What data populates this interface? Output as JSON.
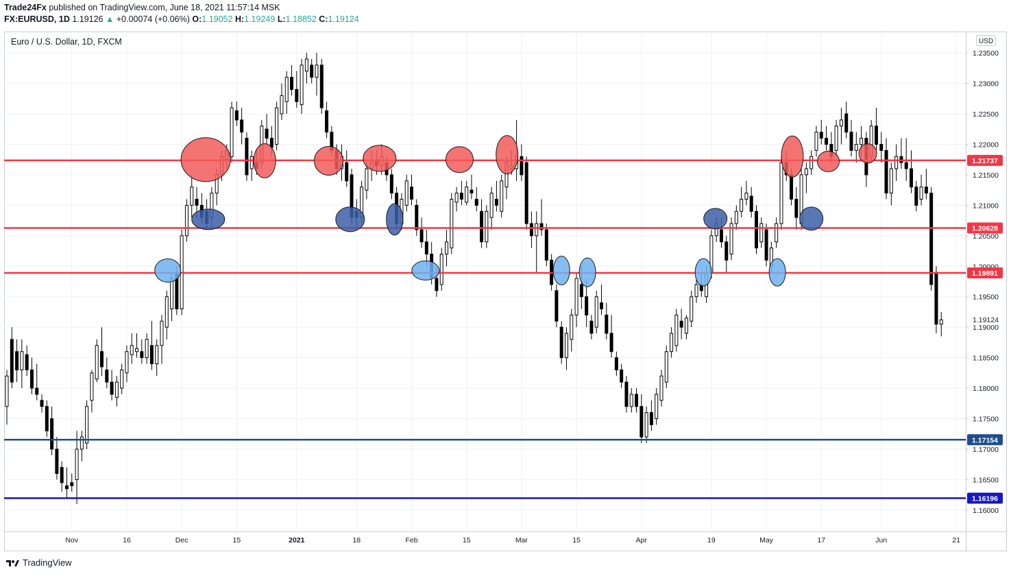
{
  "header": {
    "publisher": "Trade24Fx",
    "published_text": "published on TradingView.com, June 18, 2021 11:57:14 MSK",
    "symbol": "FX:EURUSD, 1D",
    "last": "1.19126",
    "change_arrow": "▲",
    "change": "+0.00074 (+0.06%)",
    "o_label": "O:",
    "o_value": "1.19052",
    "h_label": "H:",
    "h_value": "1.19249",
    "l_label": "L:",
    "l_value": "1.18852",
    "c_label": "C:",
    "c_value": "1.19124"
  },
  "legend_title": "Euro / U.S. Dollar, 1D, FXCM",
  "currency_badge": "USD",
  "footer": {
    "brand": "TradingView",
    "logo_icon": "tradingview-logo-icon"
  },
  "colors": {
    "resistance": "#f23645",
    "support": "#1e4d8c",
    "deep_support": "#1515c8",
    "bull_candle": "#ffffff",
    "bear_candle": "#000000",
    "red_marker": "#f25a5a",
    "dark_blue_marker": "#3d5fa8",
    "light_blue_marker": "#6fb2ee"
  },
  "chart_data": {
    "type": "candlestick",
    "title": "Euro / U.S. Dollar, 1D, FXCM",
    "ylim": [
      1.1565,
      1.2385
    ],
    "y_ticks": [
      "1.23500",
      "1.23000",
      "1.22500",
      "1.22000",
      "1.21500",
      "1.21000",
      "1.20500",
      "1.20000",
      "1.19500",
      "1.19000",
      "1.18500",
      "1.18000",
      "1.17500",
      "1.17000",
      "1.16500",
      "1.16000"
    ],
    "x_ticks": [
      {
        "label": "Nov",
        "index": 13
      },
      {
        "label": "16",
        "index": 24
      },
      {
        "label": "Dec",
        "index": 35
      },
      {
        "label": "15",
        "index": 46
      },
      {
        "label": "2021",
        "index": 58
      },
      {
        "label": "18",
        "index": 70
      },
      {
        "label": "Feb",
        "index": 81
      },
      {
        "label": "15",
        "index": 92
      },
      {
        "label": "Mar",
        "index": 103
      },
      {
        "label": "15",
        "index": 114
      },
      {
        "label": "Apr",
        "index": 127
      },
      {
        "label": "19",
        "index": 141
      },
      {
        "label": "May",
        "index": 152
      },
      {
        "label": "17",
        "index": 163
      },
      {
        "label": "Jun",
        "index": 175
      },
      {
        "label": "21",
        "index": 190
      }
    ],
    "horizontal_lines": [
      {
        "value": 1.21737,
        "label": "1.21737",
        "kind": "resistance"
      },
      {
        "value": 1.20628,
        "label": "1.20628",
        "kind": "resistance"
      },
      {
        "value": 1.19891,
        "label": "1.19891",
        "kind": "resistance"
      },
      {
        "value": 1.17154,
        "label": "1.17154",
        "kind": "support"
      },
      {
        "value": 1.16196,
        "label": "1.16196",
        "kind": "deep_support"
      }
    ],
    "last_price": {
      "value": 1.19124,
      "label": "1.19124"
    },
    "markers": [
      {
        "index": 32.2,
        "price": 1.1993,
        "kind": "light_blue",
        "rx": 19,
        "ry": 17
      },
      {
        "index": 39.8,
        "price": 1.2175,
        "kind": "red",
        "rx": 36,
        "ry": 32
      },
      {
        "index": 40.3,
        "price": 1.2077,
        "kind": "dark_blue",
        "rx": 24,
        "ry": 15
      },
      {
        "index": 51.6,
        "price": 1.2173,
        "kind": "red",
        "rx": 16,
        "ry": 25
      },
      {
        "index": 64.4,
        "price": 1.2173,
        "kind": "red",
        "rx": 21,
        "ry": 21
      },
      {
        "index": 68.7,
        "price": 1.2077,
        "kind": "dark_blue",
        "rx": 21,
        "ry": 18
      },
      {
        "index": 74.6,
        "price": 1.2177,
        "kind": "red",
        "rx": 24,
        "ry": 19
      },
      {
        "index": 77.6,
        "price": 1.2077,
        "kind": "dark_blue",
        "rx": 12,
        "ry": 23
      },
      {
        "index": 83.8,
        "price": 1.1993,
        "kind": "light_blue",
        "rx": 20,
        "ry": 14
      },
      {
        "index": 90.6,
        "price": 1.2175,
        "kind": "red",
        "rx": 20,
        "ry": 19
      },
      {
        "index": 100.1,
        "price": 1.2183,
        "kind": "red",
        "rx": 16,
        "ry": 28
      },
      {
        "index": 111.0,
        "price": 1.1993,
        "kind": "light_blue",
        "rx": 12,
        "ry": 21
      },
      {
        "index": 116.2,
        "price": 1.199,
        "kind": "light_blue",
        "rx": 12,
        "ry": 21
      },
      {
        "index": 139.4,
        "price": 1.199,
        "kind": "light_blue",
        "rx": 12,
        "ry": 20
      },
      {
        "index": 141.8,
        "price": 1.2078,
        "kind": "dark_blue",
        "rx": 17,
        "ry": 15
      },
      {
        "index": 154.2,
        "price": 1.199,
        "kind": "light_blue",
        "rx": 12,
        "ry": 20
      },
      {
        "index": 157.2,
        "price": 1.218,
        "kind": "red",
        "rx": 16,
        "ry": 30
      },
      {
        "index": 161.0,
        "price": 1.2078,
        "kind": "dark_blue",
        "rx": 17,
        "ry": 17
      },
      {
        "index": 164.4,
        "price": 1.2172,
        "kind": "red",
        "rx": 16,
        "ry": 15
      },
      {
        "index": 172.3,
        "price": 1.2185,
        "kind": "red",
        "rx": 13,
        "ry": 14
      }
    ],
    "candles": [
      [
        1.174,
        1.183,
        1.177,
        1.182
      ],
      [
        1.18,
        1.19,
        1.188,
        1.181
      ],
      [
        1.181,
        1.188,
        1.186,
        1.183
      ],
      [
        1.18,
        1.188,
        1.183,
        1.186
      ],
      [
        1.182,
        1.187,
        1.1855,
        1.183
      ],
      [
        1.179,
        1.185,
        1.183,
        1.18
      ],
      [
        1.178,
        1.184,
        1.18,
        1.179
      ],
      [
        1.176,
        1.179,
        1.178,
        1.177
      ],
      [
        1.172,
        1.178,
        1.177,
        1.173
      ],
      [
        1.169,
        1.177,
        1.175,
        1.17
      ],
      [
        1.165,
        1.172,
        1.17,
        1.166
      ],
      [
        1.163,
        1.168,
        1.167,
        1.1645
      ],
      [
        1.162,
        1.167,
        1.164,
        1.1635
      ],
      [
        1.163,
        1.166,
        1.1645,
        1.164
      ],
      [
        1.161,
        1.173,
        1.165,
        1.17
      ],
      [
        1.168,
        1.173,
        1.17,
        1.172
      ],
      [
        1.17,
        1.178,
        1.171,
        1.177
      ],
      [
        1.176,
        1.183,
        1.178,
        1.1825
      ],
      [
        1.181,
        1.188,
        1.1815,
        1.187
      ],
      [
        1.182,
        1.19,
        1.186,
        1.1835
      ],
      [
        1.18,
        1.185,
        1.183,
        1.181
      ],
      [
        1.178,
        1.183,
        1.181,
        1.179
      ],
      [
        1.177,
        1.182,
        1.1785,
        1.181
      ],
      [
        1.179,
        1.184,
        1.18,
        1.183
      ],
      [
        1.181,
        1.187,
        1.1825,
        1.186
      ],
      [
        1.184,
        1.189,
        1.1855,
        1.187
      ],
      [
        1.185,
        1.189,
        1.186,
        1.1865
      ],
      [
        1.184,
        1.188,
        1.186,
        1.185
      ],
      [
        1.184,
        1.189,
        1.185,
        1.188
      ],
      [
        1.183,
        1.191,
        1.187,
        1.184
      ],
      [
        1.182,
        1.188,
        1.184,
        1.187
      ],
      [
        1.184,
        1.192,
        1.187,
        1.191
      ],
      [
        1.188,
        1.196,
        1.19,
        1.195
      ],
      [
        1.191,
        1.199,
        1.193,
        1.198
      ],
      [
        1.192,
        1.2,
        1.199,
        1.193
      ],
      [
        1.192,
        1.206,
        1.193,
        1.205
      ],
      [
        1.204,
        1.211,
        1.205,
        1.21
      ],
      [
        1.208,
        1.215,
        1.21,
        1.213
      ],
      [
        1.208,
        1.213,
        1.211,
        1.21
      ],
      [
        1.207,
        1.212,
        1.21,
        1.208
      ],
      [
        1.206,
        1.211,
        1.209,
        1.207
      ],
      [
        1.206,
        1.213,
        1.208,
        1.212
      ],
      [
        1.21,
        1.216,
        1.212,
        1.215
      ],
      [
        1.214,
        1.219,
        1.215,
        1.218
      ],
      [
        1.216,
        1.22,
        1.2175,
        1.219
      ],
      [
        1.217,
        1.227,
        1.218,
        1.226
      ],
      [
        1.223,
        1.227,
        1.2255,
        1.224
      ],
      [
        1.22,
        1.226,
        1.224,
        1.222
      ],
      [
        1.214,
        1.222,
        1.221,
        1.215
      ],
      [
        1.214,
        1.219,
        1.216,
        1.218
      ],
      [
        1.215,
        1.219,
        1.217,
        1.216
      ],
      [
        1.216,
        1.224,
        1.217,
        1.223
      ],
      [
        1.22,
        1.225,
        1.2225,
        1.221
      ],
      [
        1.218,
        1.223,
        1.221,
        1.2195
      ],
      [
        1.219,
        1.227,
        1.22,
        1.226
      ],
      [
        1.224,
        1.23,
        1.225,
        1.228
      ],
      [
        1.225,
        1.232,
        1.227,
        1.231
      ],
      [
        1.228,
        1.233,
        1.231,
        1.229
      ],
      [
        1.226,
        1.232,
        1.229,
        1.227
      ],
      [
        1.225,
        1.234,
        1.2265,
        1.233
      ],
      [
        1.23,
        1.235,
        1.232,
        1.234
      ],
      [
        1.23,
        1.234,
        1.233,
        1.231
      ],
      [
        1.228,
        1.235,
        1.231,
        1.233
      ],
      [
        1.225,
        1.234,
        1.233,
        1.226
      ],
      [
        1.221,
        1.227,
        1.2255,
        1.222
      ],
      [
        1.218,
        1.223,
        1.222,
        1.219
      ],
      [
        1.215,
        1.22,
        1.219,
        1.216
      ],
      [
        1.214,
        1.22,
        1.216,
        1.218
      ],
      [
        1.213,
        1.219,
        1.217,
        1.214
      ],
      [
        1.207,
        1.216,
        1.215,
        1.208
      ],
      [
        1.206,
        1.211,
        1.209,
        1.208
      ],
      [
        1.207,
        1.214,
        1.208,
        1.213
      ],
      [
        1.211,
        1.217,
        1.2125,
        1.216
      ],
      [
        1.214,
        1.219,
        1.216,
        1.217
      ],
      [
        1.215,
        1.219,
        1.2175,
        1.2165
      ],
      [
        1.215,
        1.22,
        1.2165,
        1.218
      ],
      [
        1.214,
        1.218,
        1.217,
        1.215
      ],
      [
        1.211,
        1.216,
        1.215,
        1.212
      ],
      [
        1.206,
        1.213,
        1.212,
        1.207
      ],
      [
        1.206,
        1.212,
        1.207,
        1.211
      ],
      [
        1.209,
        1.215,
        1.21,
        1.214
      ],
      [
        1.21,
        1.215,
        1.213,
        1.211
      ],
      [
        1.205,
        1.211,
        1.21,
        1.206
      ],
      [
        1.203,
        1.208,
        1.206,
        1.204
      ],
      [
        1.2,
        1.206,
        1.204,
        1.202
      ],
      [
        1.197,
        1.204,
        1.202,
        1.198
      ],
      [
        1.195,
        1.2,
        1.198,
        1.196
      ],
      [
        1.196,
        1.203,
        1.197,
        1.202
      ],
      [
        1.2,
        1.206,
        1.202,
        1.204
      ],
      [
        1.202,
        1.212,
        1.203,
        1.211
      ],
      [
        1.209,
        1.213,
        1.2105,
        1.212
      ],
      [
        1.21,
        1.214,
        1.212,
        1.211
      ],
      [
        1.21,
        1.214,
        1.2105,
        1.213
      ],
      [
        1.211,
        1.215,
        1.2125,
        1.212
      ],
      [
        1.209,
        1.213,
        1.211,
        1.21
      ],
      [
        1.203,
        1.211,
        1.209,
        1.204
      ],
      [
        1.203,
        1.21,
        1.204,
        1.209
      ],
      [
        1.206,
        1.213,
        1.208,
        1.212
      ],
      [
        1.209,
        1.214,
        1.211,
        1.21
      ],
      [
        1.208,
        1.215,
        1.209,
        1.214
      ],
      [
        1.211,
        1.218,
        1.213,
        1.217
      ],
      [
        1.215,
        1.219,
        1.216,
        1.2165
      ],
      [
        1.214,
        1.224,
        1.216,
        1.218
      ],
      [
        1.214,
        1.22,
        1.218,
        1.215
      ],
      [
        1.206,
        1.218,
        1.217,
        1.207
      ],
      [
        1.203,
        1.209,
        1.207,
        1.205
      ],
      [
        1.199,
        1.209,
        1.205,
        1.207
      ],
      [
        1.205,
        1.211,
        1.207,
        1.206
      ],
      [
        1.2,
        1.207,
        1.206,
        1.201
      ],
      [
        1.196,
        1.202,
        1.201,
        1.197
      ],
      [
        1.19,
        1.197,
        1.196,
        1.191
      ],
      [
        1.184,
        1.191,
        1.19,
        1.185
      ],
      [
        1.183,
        1.19,
        1.185,
        1.189
      ],
      [
        1.186,
        1.193,
        1.188,
        1.192
      ],
      [
        1.19,
        1.199,
        1.192,
        1.198
      ],
      [
        1.193,
        1.2,
        1.197,
        1.195
      ],
      [
        1.19,
        1.198,
        1.195,
        1.192
      ],
      [
        1.188,
        1.192,
        1.191,
        1.189
      ],
      [
        1.189,
        1.196,
        1.19,
        1.195
      ],
      [
        1.192,
        1.197,
        1.194,
        1.193
      ],
      [
        1.188,
        1.194,
        1.192,
        1.189
      ],
      [
        1.185,
        1.192,
        1.189,
        1.186
      ],
      [
        1.182,
        1.186,
        1.185,
        1.183
      ],
      [
        1.18,
        1.184,
        1.183,
        1.181
      ],
      [
        1.176,
        1.182,
        1.181,
        1.177
      ],
      [
        1.176,
        1.18,
        1.177,
        1.179
      ],
      [
        1.176,
        1.18,
        1.179,
        1.177
      ],
      [
        1.171,
        1.179,
        1.177,
        1.172
      ],
      [
        1.171,
        1.177,
        1.172,
        1.176
      ],
      [
        1.173,
        1.178,
        1.176,
        1.174
      ],
      [
        1.174,
        1.18,
        1.175,
        1.179
      ],
      [
        1.177,
        1.183,
        1.178,
        1.182
      ],
      [
        1.18,
        1.187,
        1.181,
        1.186
      ],
      [
        1.185,
        1.19,
        1.186,
        1.189
      ],
      [
        1.186,
        1.193,
        1.187,
        1.192
      ],
      [
        1.188,
        1.193,
        1.191,
        1.19
      ],
      [
        1.188,
        1.192,
        1.189,
        1.1915
      ],
      [
        1.19,
        1.196,
        1.191,
        1.195
      ],
      [
        1.194,
        1.198,
        1.195,
        1.197
      ],
      [
        1.195,
        1.199,
        1.197,
        1.196
      ],
      [
        1.194,
        1.2,
        1.195,
        1.199
      ],
      [
        1.198,
        1.206,
        1.199,
        1.205
      ],
      [
        1.204,
        1.208,
        1.205,
        1.207
      ],
      [
        1.203,
        1.208,
        1.206,
        1.204
      ],
      [
        1.199,
        1.205,
        1.204,
        1.201
      ],
      [
        1.201,
        1.208,
        1.202,
        1.207
      ],
      [
        1.206,
        1.21,
        1.207,
        1.209
      ],
      [
        1.208,
        1.213,
        1.209,
        1.211
      ],
      [
        1.21,
        1.214,
        1.211,
        1.212
      ],
      [
        1.208,
        1.213,
        1.2115,
        1.209
      ],
      [
        1.202,
        1.21,
        1.209,
        1.203
      ],
      [
        1.203,
        1.208,
        1.204,
        1.207
      ],
      [
        1.2,
        1.207,
        1.206,
        1.201
      ],
      [
        1.199,
        1.204,
        1.2,
        1.203
      ],
      [
        1.203,
        1.208,
        1.204,
        1.207
      ],
      [
        1.206,
        1.218,
        1.207,
        1.217
      ],
      [
        1.214,
        1.219,
        1.217,
        1.215
      ],
      [
        1.21,
        1.216,
        1.215,
        1.211
      ],
      [
        1.206,
        1.213,
        1.211,
        1.208
      ],
      [
        1.206,
        1.216,
        1.207,
        1.215
      ],
      [
        1.212,
        1.217,
        1.215,
        1.216
      ],
      [
        1.215,
        1.219,
        1.216,
        1.218
      ],
      [
        1.218,
        1.223,
        1.219,
        1.222
      ],
      [
        1.22,
        1.224,
        1.222,
        1.221
      ],
      [
        1.219,
        1.223,
        1.221,
        1.22
      ],
      [
        1.217,
        1.222,
        1.22,
        1.218
      ],
      [
        1.218,
        1.224,
        1.219,
        1.223
      ],
      [
        1.22,
        1.226,
        1.223,
        1.224
      ],
      [
        1.221,
        1.227,
        1.225,
        1.222
      ],
      [
        1.218,
        1.224,
        1.222,
        1.219
      ],
      [
        1.217,
        1.222,
        1.219,
        1.22
      ],
      [
        1.218,
        1.223,
        1.22,
        1.221
      ],
      [
        1.213,
        1.222,
        1.221,
        1.215
      ],
      [
        1.217,
        1.224,
        1.218,
        1.223
      ],
      [
        1.219,
        1.226,
        1.223,
        1.22
      ],
      [
        1.217,
        1.222,
        1.22,
        1.219
      ],
      [
        1.211,
        1.221,
        1.219,
        1.212
      ],
      [
        1.21,
        1.217,
        1.212,
        1.216
      ],
      [
        1.214,
        1.22,
        1.216,
        1.218
      ],
      [
        1.216,
        1.221,
        1.218,
        1.217
      ],
      [
        1.214,
        1.221,
        1.217,
        1.216
      ],
      [
        1.212,
        1.219,
        1.216,
        1.213
      ],
      [
        1.209,
        1.214,
        1.213,
        1.21
      ],
      [
        1.21,
        1.215,
        1.211,
        1.213
      ],
      [
        1.211,
        1.216,
        1.213,
        1.212
      ],
      [
        1.196,
        1.213,
        1.212,
        1.197
      ],
      [
        1.189,
        1.2,
        1.199,
        1.1905
      ],
      [
        1.1885,
        1.1925,
        1.1905,
        1.1912
      ]
    ]
  }
}
